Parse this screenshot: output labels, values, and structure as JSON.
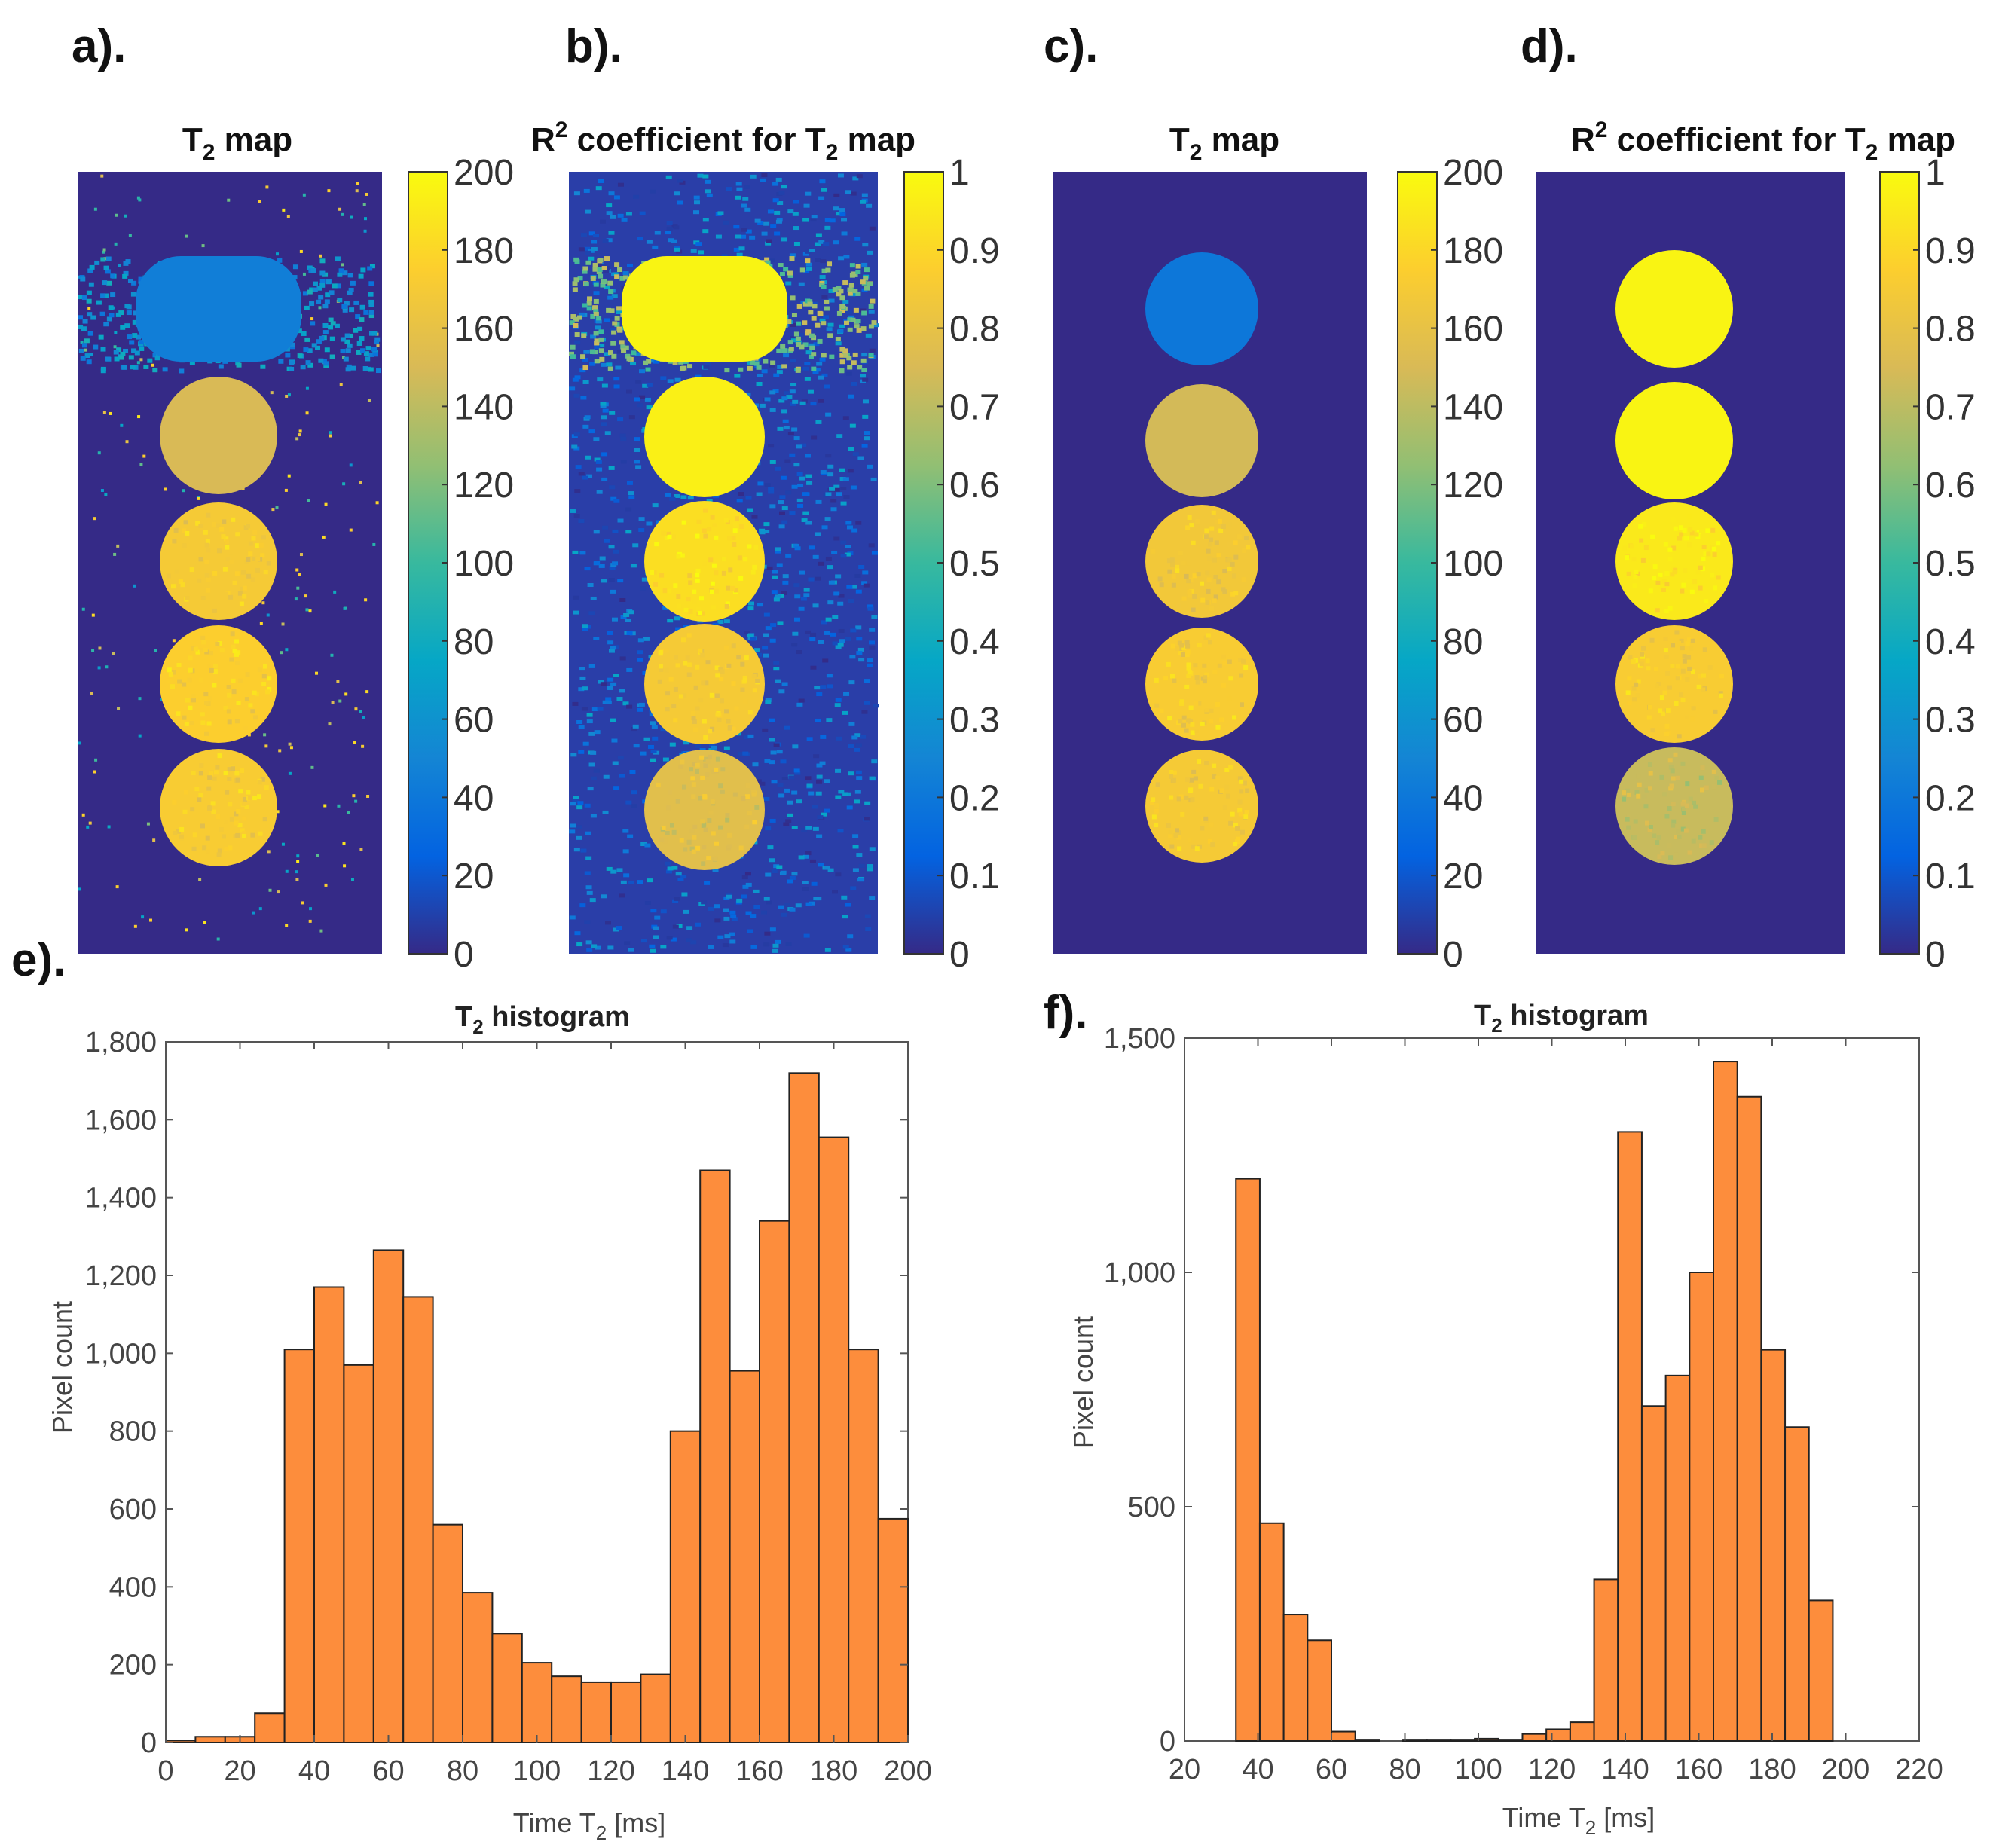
{
  "colors": {
    "bg_navy": "#352a87",
    "bar_fill": "#fd8d3c",
    "axis": "#333333",
    "text": "#222222",
    "parula": [
      "#352a87",
      "#0363e1",
      "#1485d4",
      "#06a7c6",
      "#38b99e",
      "#92bf73",
      "#d9ba56",
      "#fcce2e",
      "#f9fb0e"
    ]
  },
  "panels": {
    "a": {
      "letter": "a).",
      "title_main": "T",
      "title_sub": "2",
      "title_rest": " map",
      "cbar_ticks": [
        "200",
        "180",
        "160",
        "140",
        "120",
        "100",
        "80",
        "60",
        "40",
        "20",
        "0"
      ]
    },
    "b": {
      "letter": "b).",
      "title_main": "R",
      "title_sup": "2",
      "title_mid": " coefficient for T",
      "title_sub": "2",
      "title_rest": " map",
      "cbar_ticks": [
        "1",
        "0.9",
        "0.8",
        "0.7",
        "0.6",
        "0.5",
        "0.4",
        "0.3",
        "0.2",
        "0.1",
        "0"
      ]
    },
    "c": {
      "letter": "c).",
      "title_main": "T",
      "title_sub": "2",
      "title_rest": " map",
      "cbar_ticks": [
        "200",
        "180",
        "160",
        "140",
        "120",
        "100",
        "80",
        "60",
        "40",
        "20",
        "0"
      ]
    },
    "d": {
      "letter": "d).",
      "title_main": "R",
      "title_sup": "2",
      "title_mid": " coefficient for T",
      "title_sub": "2",
      "title_rest": " map",
      "cbar_ticks": [
        "1",
        "0.9",
        "0.8",
        "0.7",
        "0.6",
        "0.5",
        "0.4",
        "0.3",
        "0.2",
        "0.1",
        "0"
      ]
    },
    "maps": {
      "a": {
        "disks_t2": [
          45,
          150,
          170,
          175,
          172
        ],
        "noise": true
      },
      "b": {
        "disks_r2": [
          0.98,
          0.97,
          0.92,
          0.85,
          0.78
        ],
        "noise": true
      },
      "c": {
        "disks_t2": [
          40,
          148,
          168,
          172,
          170
        ],
        "noise": false
      },
      "d": {
        "disks_r2": [
          0.98,
          0.98,
          0.95,
          0.86,
          0.72
        ],
        "noise": false
      }
    }
  },
  "chart_data": [
    {
      "id": "e",
      "type": "bar",
      "letter": "e).",
      "title_main": "T",
      "title_sub": "2",
      "title_rest": " histogram",
      "xlabel_main": "Time  T",
      "xlabel_sub": "2",
      "xlabel_rest": "  [ms]",
      "ylabel": "Pixel count",
      "xlim": [
        0,
        200
      ],
      "ylim": [
        0,
        1800
      ],
      "xticks": [
        "0",
        "20",
        "40",
        "60",
        "80",
        "100",
        "120",
        "140",
        "160",
        "180",
        "200"
      ],
      "yticks": [
        "0",
        "200",
        "400",
        "600",
        "800",
        "1,000",
        "1,200",
        "1,400",
        "1,600",
        "1,800"
      ],
      "bin_width": 8,
      "bin_starts": [
        0,
        8,
        16,
        24,
        32,
        40,
        48,
        56,
        64,
        72,
        80,
        88,
        96,
        104,
        112,
        120,
        128,
        136,
        144,
        152,
        160,
        168,
        176,
        184,
        192
      ],
      "values": [
        5,
        15,
        15,
        75,
        1010,
        1170,
        970,
        1265,
        1145,
        560,
        385,
        280,
        205,
        170,
        155,
        155,
        175,
        800,
        1470,
        955,
        1340,
        1720,
        1555,
        1010,
        575
      ]
    },
    {
      "id": "f",
      "type": "bar",
      "letter": "f).",
      "title_main": "T",
      "title_sub": "2",
      "title_rest": " histogram",
      "xlabel_main": "Time T",
      "xlabel_sub": "2",
      "xlabel_rest": " [ms]",
      "ylabel": "Pixel count",
      "xlim": [
        20,
        220
      ],
      "ylim": [
        0,
        1500
      ],
      "xticks": [
        "20",
        "40",
        "60",
        "80",
        "100",
        "120",
        "140",
        "160",
        "180",
        "200",
        "220"
      ],
      "yticks": [
        "0",
        "500",
        "1,000",
        "1,500"
      ],
      "bin_width": 6.5,
      "bin_starts": [
        34,
        40.5,
        47,
        53.5,
        60,
        66.5,
        73,
        79.5,
        86,
        92.5,
        99,
        105.5,
        112,
        118.5,
        125,
        131.5,
        138,
        144.5,
        151,
        157.5,
        164,
        170.5,
        177,
        183.5,
        190
      ],
      "values": [
        1200,
        465,
        270,
        215,
        20,
        3,
        0,
        3,
        3,
        3,
        5,
        3,
        15,
        25,
        40,
        345,
        1300,
        715,
        780,
        1000,
        1450,
        1375,
        835,
        670,
        300
      ]
    }
  ]
}
